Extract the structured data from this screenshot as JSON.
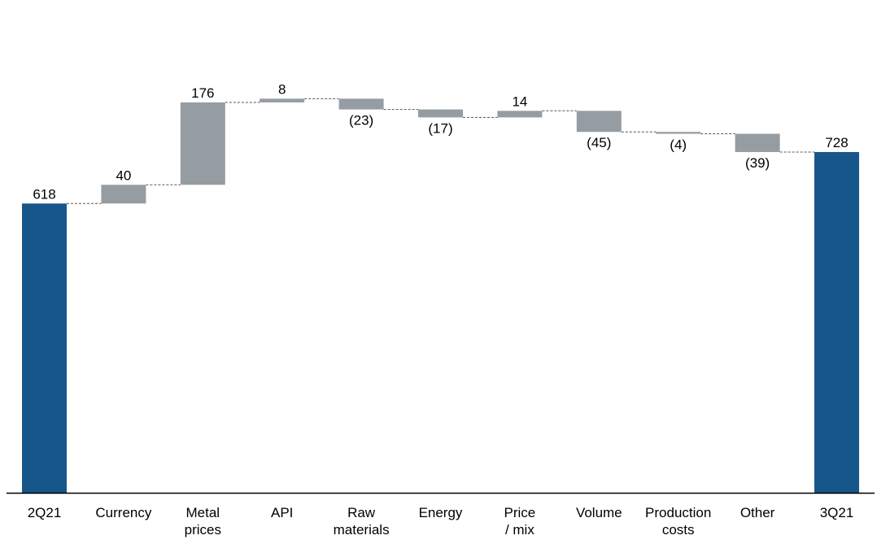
{
  "chart_data": {
    "type": "bar",
    "subtype": "waterfall",
    "title": "",
    "xlabel": "",
    "ylabel": "",
    "ylim": [
      0,
      750
    ],
    "grid": false,
    "legend": "none",
    "categories": [
      "2Q21",
      "Currency",
      "Metal prices",
      "API",
      "Raw materials",
      "Energy",
      "Price / mix",
      "Volume",
      "Production costs",
      "Other",
      "3Q21"
    ],
    "category_lines": [
      [
        "2Q21"
      ],
      [
        "Currency"
      ],
      [
        "Metal",
        "prices"
      ],
      [
        "API"
      ],
      [
        "Raw",
        "materials"
      ],
      [
        "Energy"
      ],
      [
        "Price",
        "/ mix"
      ],
      [
        "Volume"
      ],
      [
        "Production",
        "costs"
      ],
      [
        "Other"
      ],
      [
        "3Q21"
      ]
    ],
    "values": [
      618,
      40,
      176,
      8,
      -23,
      -17,
      14,
      -45,
      -4,
      -39,
      728
    ],
    "kinds": [
      "total",
      "delta",
      "delta",
      "delta",
      "delta",
      "delta",
      "delta",
      "delta",
      "delta",
      "delta",
      "total"
    ],
    "value_labels": [
      "618",
      "40",
      "176",
      "8",
      "(23)",
      "(17)",
      "14",
      "(45)",
      "(4)",
      "(39)",
      "728"
    ],
    "colors": {
      "total": "#17568a",
      "delta": "#969da2",
      "connector": "#555555",
      "axis": "#000000"
    }
  }
}
